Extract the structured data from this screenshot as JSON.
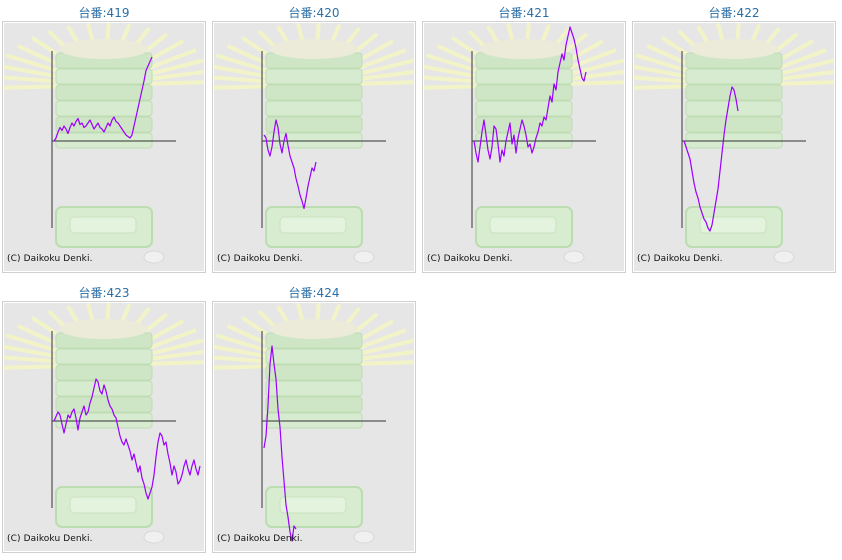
{
  "chart_data": [
    {
      "type": "line",
      "title": "台番:419",
      "footer": "(C) Daikoku Denki.",
      "line_color": "#9b00ff",
      "values": [
        0,
        2,
        6,
        9,
        7,
        10,
        8,
        5,
        9,
        12,
        10,
        13,
        15,
        11,
        12,
        9,
        10,
        12,
        14,
        11,
        8,
        10,
        12,
        9,
        8,
        6,
        9,
        12,
        10,
        14,
        16,
        13,
        12,
        10,
        8,
        6,
        4,
        3,
        2,
        4,
        10,
        16,
        22,
        28,
        34,
        40,
        47,
        50,
        53,
        56
      ]
    },
    {
      "type": "line",
      "title": "台番:420",
      "footer": "(C) Daikoku Denki.",
      "line_color": "#9b00ff",
      "values": [
        4,
        2,
        -6,
        -10,
        -4,
        6,
        14,
        9,
        -2,
        -8,
        0,
        5,
        -3,
        -10,
        -14,
        -18,
        -25,
        -30,
        -36,
        -40,
        -45,
        -38,
        -30,
        -24,
        -18,
        -20,
        -14
      ]
    },
    {
      "type": "line",
      "title": "台番:421",
      "footer": "(C) Daikoku Denki.",
      "line_color": "#9b00ff",
      "values": [
        0,
        -8,
        -14,
        -4,
        6,
        14,
        4,
        -6,
        -12,
        -4,
        10,
        8,
        -2,
        -14,
        -6,
        -10,
        0,
        6,
        12,
        -2,
        4,
        -8,
        2,
        8,
        14,
        10,
        4,
        -4,
        -2,
        -8,
        -4,
        2,
        6,
        12,
        10,
        16,
        14,
        22,
        30,
        26,
        38,
        34,
        46,
        52,
        58,
        54,
        64,
        70,
        76,
        72,
        68,
        62,
        54,
        48,
        42,
        40,
        46
      ]
    },
    {
      "type": "line",
      "title": "台番:422",
      "footer": "(C) Daikoku Denki.",
      "line_color": "#9b00ff",
      "values": [
        0,
        -4,
        -8,
        -12,
        -20,
        -28,
        -34,
        -38,
        -44,
        -48,
        -52,
        -54,
        -58,
        -60,
        -56,
        -48,
        -40,
        -32,
        -20,
        -8,
        4,
        14,
        22,
        30,
        36,
        34,
        28,
        20
      ]
    },
    {
      "type": "line",
      "title": "台番:423",
      "footer": "(C) Daikoku Denki.",
      "line_color": "#9b00ff",
      "values": [
        0,
        3,
        6,
        4,
        -2,
        -8,
        -2,
        4,
        2,
        6,
        8,
        2,
        -6,
        2,
        6,
        10,
        4,
        6,
        12,
        16,
        22,
        28,
        26,
        20,
        18,
        24,
        20,
        14,
        10,
        8,
        4,
        2,
        -4,
        -10,
        -14,
        -16,
        -12,
        -16,
        -20,
        -26,
        -22,
        -28,
        -34,
        -30,
        -38,
        -42,
        -48,
        -52,
        -48,
        -44,
        -36,
        -24,
        -14,
        -8,
        -10,
        -16,
        -14,
        -22,
        -28,
        -36,
        -30,
        -34,
        -42,
        -40,
        -36,
        -30,
        -26,
        -32,
        -36,
        -30,
        -26,
        -32,
        -36,
        -30
      ]
    },
    {
      "type": "line",
      "title": "台番:424",
      "footer": "(C) Daikoku Denki.",
      "line_color": "#9b00ff",
      "values": [
        -18,
        -10,
        10,
        38,
        50,
        38,
        28,
        8,
        -4,
        -24,
        -40,
        -56,
        -64,
        -74,
        -80,
        -70,
        -72
      ]
    }
  ]
}
